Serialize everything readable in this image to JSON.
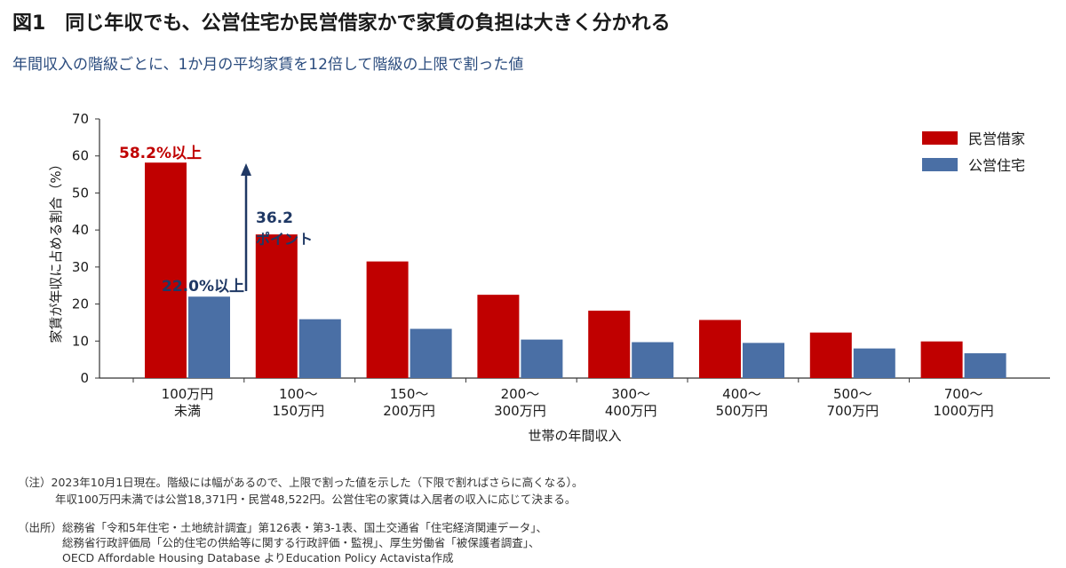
{
  "title": "図1　同じ年収でも、公営住宅か民営借家かで家賃の負担は大きく分かれる",
  "subtitle": "年間収入の階級ごとに、1か月の平均家賃を12倍して階級の上限で割った値",
  "colors": {
    "red": "#c00000",
    "blue": "#4a6fa5",
    "navy": "#1f3864"
  },
  "annotations": {
    "red_label": "58.2%以上",
    "blue_label": "22.0%以上",
    "diff_value": "36.2",
    "diff_unit": "ポイント"
  },
  "notes": {
    "line1": "（注）2023年10月1日現在。階級には幅があるので、上限で割った値を示した（下限で割ればさらに高くなる）。",
    "line2": "年収100万円未満では公営18,371円・民営48,522円。公営住宅の家賃は入居者の収入に応じて決まる。",
    "line3": "（出所）総務省「令和5年住宅・土地統計調査」第126表・第3-1表、国土交通省「住宅経済関連データ」、",
    "line4": "総務省行政評価局「公的住宅の供給等に関する行政評価・監視」、厚生労働省「被保護者調査」、",
    "line5": "OECD Affordable Housing Database よりEducation Policy Actavista作成"
  },
  "chart_data": {
    "type": "bar",
    "categories": [
      [
        "100万円",
        "未満"
      ],
      [
        "100～",
        "150万円"
      ],
      [
        "150～",
        "200万円"
      ],
      [
        "200～",
        "300万円"
      ],
      [
        "300～",
        "400万円"
      ],
      [
        "400～",
        "500万円"
      ],
      [
        "500～",
        "700万円"
      ],
      [
        "700～",
        "1000万円"
      ]
    ],
    "series": [
      {
        "name": "民営借家",
        "color": "#c00000",
        "values": [
          58.2,
          38.8,
          31.5,
          22.5,
          18.2,
          15.7,
          12.3,
          9.9
        ]
      },
      {
        "name": "公営住宅",
        "color": "#4a6fa5",
        "values": [
          22.0,
          15.9,
          13.3,
          10.4,
          9.7,
          9.5,
          8.0,
          6.7
        ]
      }
    ],
    "xlabel": "世帯の年間収入",
    "ylabel": "家賃が年収に占める割合（%）",
    "ylim": [
      0,
      70
    ],
    "yticks": [
      0,
      10,
      20,
      30,
      40,
      50,
      60,
      70
    ],
    "legend": "top-right",
    "grid": false
  }
}
